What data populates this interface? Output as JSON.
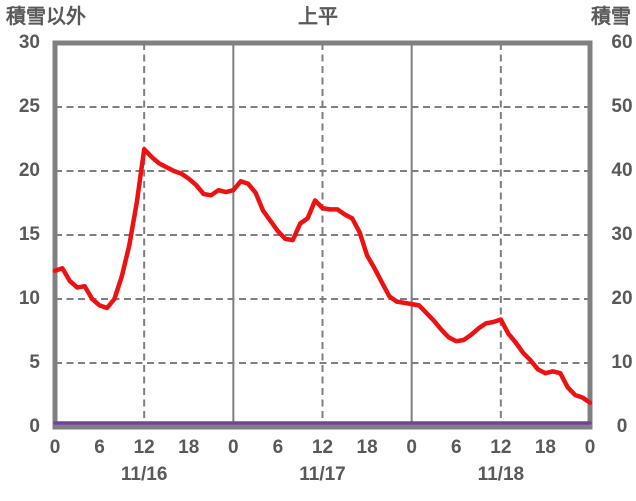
{
  "header": {
    "left_axis_title": "積雪以外",
    "chart_title": "上平",
    "right_axis_title": "積雪"
  },
  "colors": {
    "text": "#595959",
    "border": "#808080",
    "gridline": "#7f7f7f",
    "temperature_line": "#ee1111",
    "snow_line": "#7342a0",
    "background": "#ffffff"
  },
  "chart_data": {
    "type": "line",
    "title": "上平",
    "x_unit": "hour",
    "x_hours_range": [
      0,
      72
    ],
    "x_tick_hours": [
      0,
      6,
      12,
      18,
      24,
      30,
      36,
      42,
      48,
      54,
      60,
      66,
      72
    ],
    "x_tick_labels": [
      "0",
      "6",
      "12",
      "18",
      "0",
      "6",
      "12",
      "18",
      "0",
      "6",
      "12",
      "18",
      "0"
    ],
    "date_labels": [
      {
        "label": "11/16",
        "hour": 12
      },
      {
        "label": "11/17",
        "hour": 36
      },
      {
        "label": "11/18",
        "hour": 60
      }
    ],
    "left_axis": {
      "title": "積雪以外",
      "min": 0,
      "max": 30,
      "ticks": [
        30,
        25,
        20,
        15,
        10,
        5,
        0
      ]
    },
    "right_axis": {
      "title": "積雪",
      "min": 0,
      "max": 60,
      "ticks": [
        60,
        50,
        40,
        30,
        20,
        10,
        0
      ]
    },
    "gridlines": {
      "horizontal_left_values": [
        25,
        20,
        15,
        10,
        5
      ],
      "vertical_solid_hours": [
        24,
        48
      ],
      "vertical_dashed_hours": [
        12,
        36,
        60
      ],
      "grid_on": true,
      "legend": "none"
    },
    "series": [
      {
        "name": "積雪以外",
        "axis": "left",
        "color": "#ee1111",
        "values": [
          12.2,
          12.4,
          11.4,
          10.9,
          11.0,
          10.0,
          9.5,
          9.3,
          10.0,
          11.8,
          14.2,
          17.5,
          21.7,
          21.1,
          20.6,
          20.3,
          20.0,
          19.8,
          19.4,
          18.9,
          18.2,
          18.1,
          18.5,
          18.35,
          18.5,
          19.2,
          19.0,
          18.3,
          16.9,
          16.1,
          15.3,
          14.7,
          14.6,
          15.9,
          16.3,
          17.7,
          17.1,
          17.0,
          17.0,
          16.6,
          16.3,
          15.2,
          13.4,
          12.4,
          11.3,
          10.2,
          9.8,
          9.7,
          9.6,
          9.5,
          8.9,
          8.3,
          7.6,
          7.0,
          6.7,
          6.8,
          7.2,
          7.7,
          8.1,
          8.2,
          8.4,
          7.3,
          6.6,
          5.8,
          5.2,
          4.5,
          4.2,
          4.35,
          4.2,
          3.1,
          2.5,
          2.3,
          1.9
        ]
      },
      {
        "name": "積雪",
        "axis": "right",
        "color": "#7342a0",
        "values": [
          0,
          0,
          0,
          0,
          0,
          0,
          0,
          0,
          0,
          0,
          0,
          0,
          0,
          0,
          0,
          0,
          0,
          0,
          0,
          0,
          0,
          0,
          0,
          0,
          0,
          0,
          0,
          0,
          0,
          0,
          0,
          0,
          0,
          0,
          0,
          0,
          0,
          0,
          0,
          0,
          0,
          0,
          0,
          0,
          0,
          0,
          0,
          0,
          0,
          0,
          0,
          0,
          0,
          0,
          0,
          0,
          0,
          0,
          0,
          0,
          0,
          0,
          0,
          0,
          0,
          0,
          0,
          0,
          0,
          0,
          0,
          0,
          0
        ]
      }
    ]
  }
}
